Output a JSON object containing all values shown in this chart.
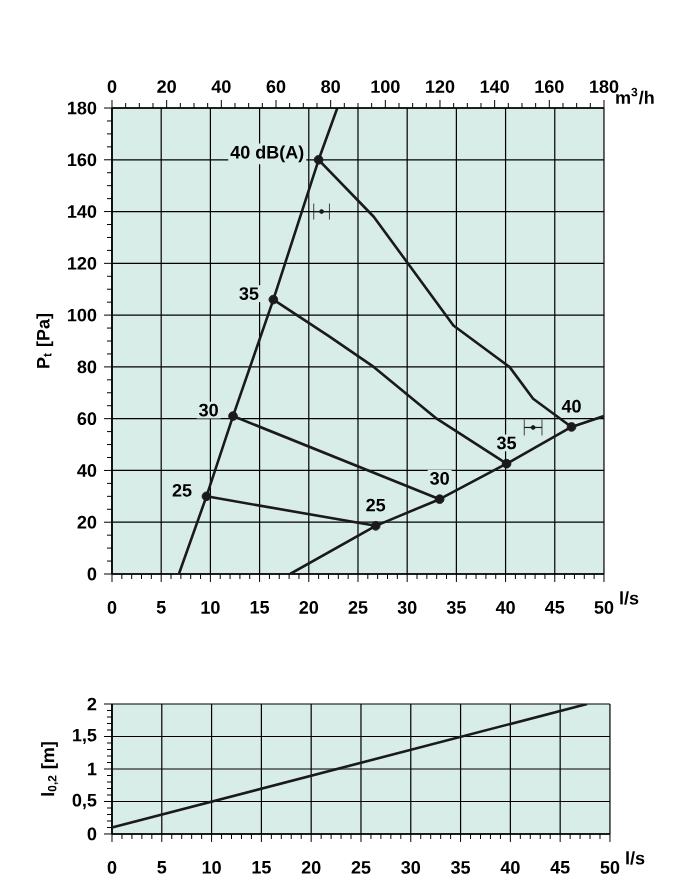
{
  "chart_data": [
    {
      "type": "line",
      "xlabel": "l/s",
      "ylabel": "P$_{t}$ [Pa]",
      "x2label": "m$^{3}$/h",
      "xlim": [
        0,
        50
      ],
      "xticks": [
        0,
        5,
        10,
        15,
        20,
        25,
        30,
        35,
        40,
        45,
        50
      ],
      "ylim": [
        0,
        180
      ],
      "yticks": [
        0,
        20,
        40,
        60,
        80,
        100,
        120,
        140,
        160,
        180
      ],
      "x2lim": [
        0,
        180
      ],
      "x2ticks": [
        0,
        20,
        40,
        60,
        80,
        100,
        120,
        140,
        160,
        180
      ],
      "grid": true,
      "series": [
        {
          "color": "#1a1a1a",
          "x": [
            6.8,
            9.6,
            12.3,
            16.4,
            21,
            22.9
          ],
          "values": [
            0,
            30,
            61,
            106,
            160,
            180
          ]
        },
        {
          "color": "#1a1a1a",
          "x": [
            18.1,
            26.8,
            33.3,
            40.1,
            46.7,
            50
          ],
          "values": [
            0,
            18.6,
            28.9,
            42.6,
            56.8,
            61
          ]
        },
        {
          "color": "#1a1a1a",
          "x": [
            9.6,
            26.8
          ],
          "values": [
            30,
            18.6
          ]
        },
        {
          "color": "#1a1a1a",
          "x": [
            12.3,
            33.3
          ],
          "values": [
            61,
            28.9
          ]
        },
        {
          "color": "#1a1a1a",
          "x": [
            16.4,
            22,
            26.6,
            33,
            40.1
          ],
          "values": [
            106,
            92,
            80,
            60,
            42.6
          ]
        },
        {
          "color": "#1a1a1a",
          "x": [
            21,
            26.6,
            34.7,
            40.4,
            42.8,
            46.7
          ],
          "values": [
            160,
            138,
            96,
            80,
            67.7,
            56.8
          ]
        },
        {
          "type": "scatter",
          "marker": "circle",
          "color": "#1a1a1a",
          "x": [
            9.6,
            12.3,
            16.4,
            21,
            26.8,
            33.3,
            40.1,
            46.7
          ],
          "values": [
            30,
            61,
            106,
            160,
            18.6,
            28.9,
            42.6,
            56.8
          ]
        },
        {
          "type": "scatter",
          "marker": "circle",
          "color": "#1a1a1a",
          "x": [
            21.3,
            42.8
          ],
          "values": [
            140,
            56.6
          ],
          "xerrors": [
            0.8,
            0.9
          ]
        }
      ],
      "annotations": [
        {
          "text": "25",
          "x": 9.6,
          "y": 30
        },
        {
          "text": "30",
          "x": 12.3,
          "y": 61
        },
        {
          "text": "35",
          "x": 16.4,
          "y": 106
        },
        {
          "text": "40 dB(A)",
          "x": 21,
          "y": 160
        },
        {
          "text": "25",
          "x": 26.8,
          "y": 18.6
        },
        {
          "text": "30",
          "x": 33.3,
          "y": 28.9
        },
        {
          "text": "35",
          "x": 40.1,
          "y": 42.6
        },
        {
          "text": "40",
          "x": 46.7,
          "y": 56.8
        }
      ]
    },
    {
      "type": "line",
      "xlabel": "l/s",
      "ylabel": "l$_{0,2}$ [m]",
      "xlim": [
        0,
        50
      ],
      "xticks": [
        0,
        5,
        10,
        15,
        20,
        25,
        30,
        35,
        40,
        45,
        50
      ],
      "ylim": [
        0,
        2
      ],
      "yticks": [
        0,
        {
          "value": 0.5,
          "label": "0,5"
        },
        1,
        {
          "value": 1.5,
          "label": "1,5"
        },
        2
      ],
      "grid": true,
      "series": [
        {
          "color": "#1a1a1a",
          "x": [
            0,
            47.7
          ],
          "values": [
            0.1,
            2
          ]
        }
      ]
    }
  ]
}
